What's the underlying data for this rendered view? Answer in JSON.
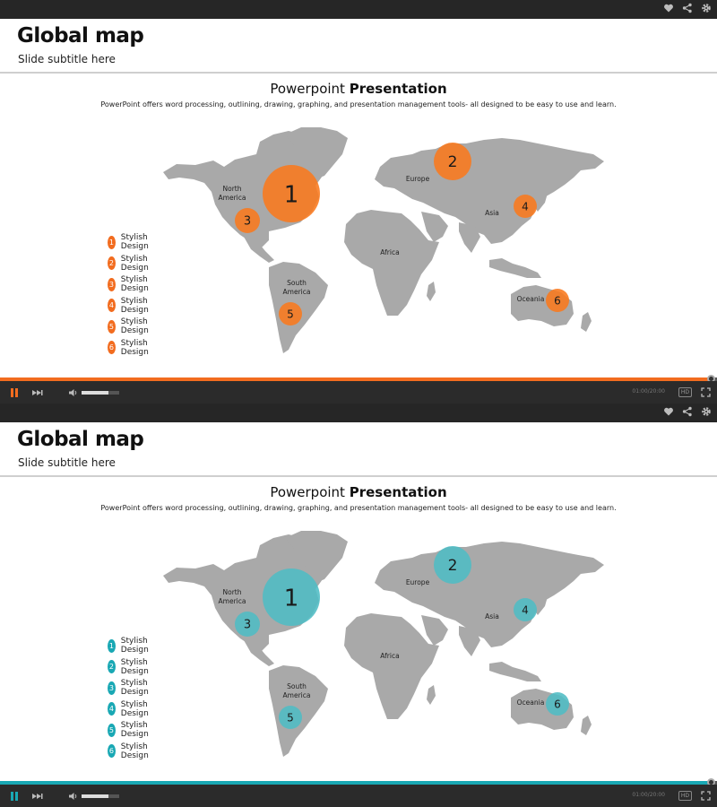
{
  "slide": {
    "title": "Global map",
    "subtitle": "Slide subtitle here",
    "content_title_regular": "Powerpoint",
    "content_title_bold": "Presentation",
    "description": "PowerPoint offers word processing, outlining, drawing, graphing, and presentation management tools- all designed to be easy to use and learn."
  },
  "regions": {
    "north_america": [
      "North",
      "America"
    ],
    "south_america": [
      "South",
      "America"
    ],
    "europe": "Europe",
    "asia": "Asia",
    "africa": "Africa",
    "oceania": "Oceania"
  },
  "markers": [
    "1",
    "2",
    "3",
    "4",
    "5",
    "6"
  ],
  "legend": {
    "labels": [
      "Stylish Design",
      "Stylish Design",
      "Stylish Design",
      "Stylish Design",
      "Stylish Design",
      "Stylish Design"
    ]
  },
  "player": {
    "time": "01:00/20:00",
    "hd_label": "HD",
    "icons": [
      "heart-icon",
      "share-icon",
      "gear-icon",
      "pause-icon",
      "next-icon",
      "volume-icon",
      "fullscreen-icon"
    ]
  },
  "themes": [
    {
      "accent": "#f26c1f",
      "marker_fill": "#f9791c"
    },
    {
      "accent": "#19a8b4",
      "marker_fill": "#4fbcc4"
    }
  ],
  "colors": {
    "land": "#a9a9a9",
    "bar": "#262626"
  }
}
